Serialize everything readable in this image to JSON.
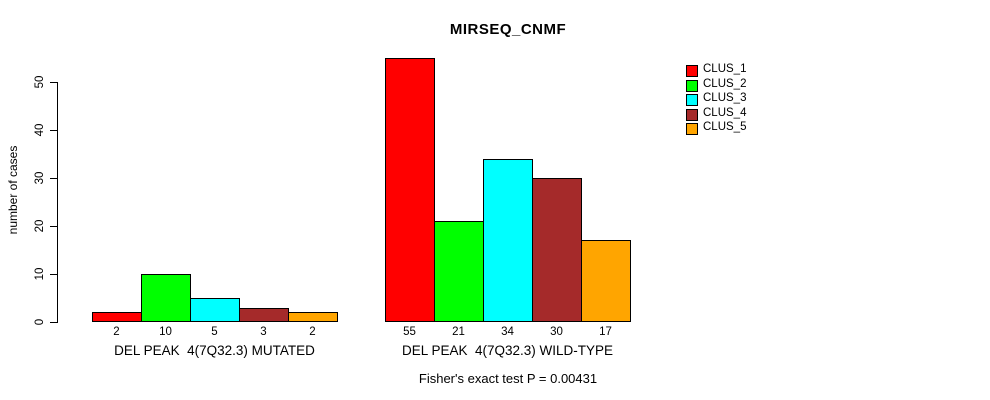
{
  "title": "MIRSEQ_CNMF",
  "chart_data": {
    "type": "bar",
    "title": "MIRSEQ_CNMF",
    "xlabel": "",
    "ylabel": "number of cases",
    "yticks": [
      0,
      10,
      20,
      30,
      40,
      50
    ],
    "ylim": [
      0,
      55
    ],
    "grid": false,
    "legend_position": "topright",
    "series": [
      {
        "name": "CLUS_1",
        "color": "#FF0000"
      },
      {
        "name": "CLUS_2",
        "color": "#00FF00"
      },
      {
        "name": "CLUS_3",
        "color": "#00FFFF"
      },
      {
        "name": "CLUS_4",
        "color": "#A52A2A"
      },
      {
        "name": "CLUS_5",
        "color": "#FFA500"
      }
    ],
    "groups": [
      {
        "label": "DEL PEAK  4(7Q32.3) MUTATED",
        "values": [
          2,
          10,
          5,
          3,
          2
        ]
      },
      {
        "label": "DEL PEAK  4(7Q32.3) WILD-TYPE",
        "values": [
          55,
          21,
          34,
          30,
          17
        ]
      }
    ],
    "bar_value_labels_shown": true,
    "annotation": "Fisher's exact test P = 0.00431",
    "axis_color": "#000000",
    "background_color": "#FFFFFF"
  }
}
